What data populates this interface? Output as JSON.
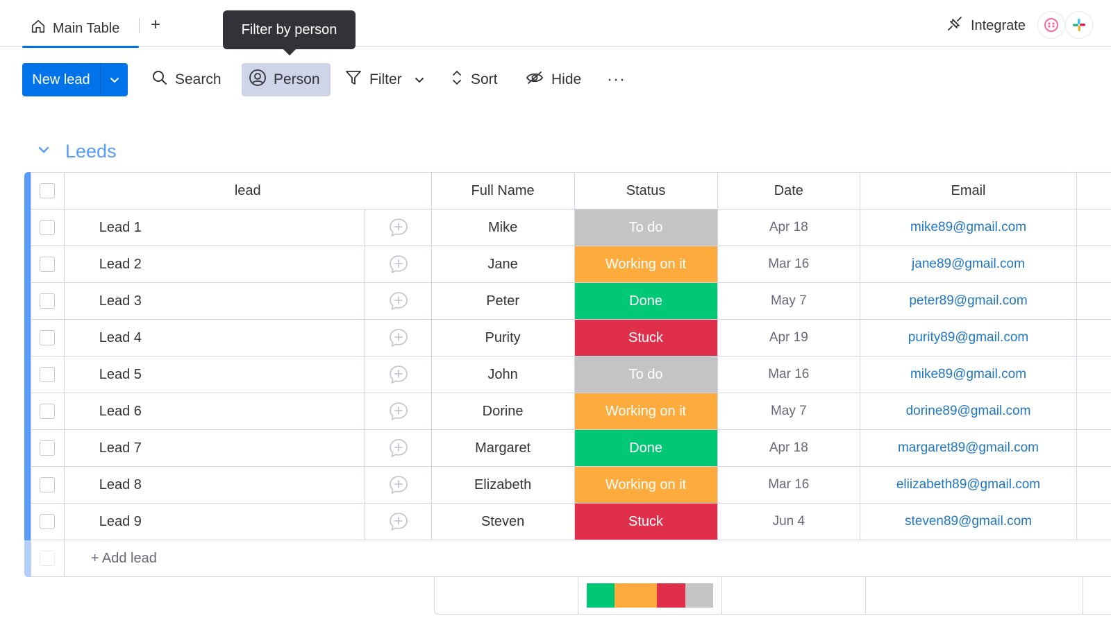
{
  "tabs": {
    "main_table_label": "Main Table",
    "add_tab_symbol": "+",
    "integrate_label": "Integrate"
  },
  "tooltip": {
    "text": "Filter by person"
  },
  "toolbar": {
    "new_lead_label": "New lead",
    "search_label": "Search",
    "person_label": "Person",
    "filter_label": "Filter",
    "sort_label": "Sort",
    "hide_label": "Hide",
    "more_symbol": "···"
  },
  "group": {
    "title": "Leeds",
    "color": "#579bfc"
  },
  "columns": {
    "lead": "lead",
    "full_name": "Full Name",
    "status": "Status",
    "date": "Date",
    "email": "Email"
  },
  "rows": [
    {
      "lead": "Lead 1",
      "full_name": "Mike",
      "status": "To do",
      "status_color": "#c4c4c4",
      "date": "Apr 18",
      "email": "mike89@gmail.com"
    },
    {
      "lead": "Lead 2",
      "full_name": "Jane",
      "status": "Working on it",
      "status_color": "#fdab3d",
      "date": "Mar 16",
      "email": "jane89@gmail.com"
    },
    {
      "lead": "Lead 3",
      "full_name": "Peter",
      "status": "Done",
      "status_color": "#00c875",
      "date": "May 7",
      "email": "peter89@gmail.com"
    },
    {
      "lead": "Lead 4",
      "full_name": "Purity",
      "status": "Stuck",
      "status_color": "#df2f4a",
      "date": "Apr 19",
      "email": "purity89@gmail.com"
    },
    {
      "lead": "Lead 5",
      "full_name": "John",
      "status": "To do",
      "status_color": "#c4c4c4",
      "date": "Mar 16",
      "email": "mike89@gmail.com"
    },
    {
      "lead": "Lead 6",
      "full_name": "Dorine",
      "status": "Working on it",
      "status_color": "#fdab3d",
      "date": "May 7",
      "email": "dorine89@gmail.com"
    },
    {
      "lead": "Lead 7",
      "full_name": "Margaret",
      "status": "Done",
      "status_color": "#00c875",
      "date": "Apr 18",
      "email": "margaret89@gmail.com"
    },
    {
      "lead": "Lead 8",
      "full_name": "Elizabeth",
      "status": "Working on it",
      "status_color": "#fdab3d",
      "date": "Mar 16",
      "email": "eliizabeth89@gmail.com"
    },
    {
      "lead": "Lead 9",
      "full_name": "Steven",
      "status": "Stuck",
      "status_color": "#df2f4a",
      "date": "Jun 4",
      "email": "steven89@gmail.com"
    }
  ],
  "add_row_label": "+ Add lead",
  "status_summary": [
    {
      "status": "Done",
      "count": 2,
      "color": "#00c875"
    },
    {
      "status": "Working on it",
      "count": 3,
      "color": "#fdab3d"
    },
    {
      "status": "Stuck",
      "count": 2,
      "color": "#df2f4a"
    },
    {
      "status": "To do",
      "count": 2,
      "color": "#c4c4c4"
    }
  ],
  "colors": {
    "primary": "#0073ea",
    "email_link": "#1f76c2",
    "tooltip_bg": "#323338"
  }
}
